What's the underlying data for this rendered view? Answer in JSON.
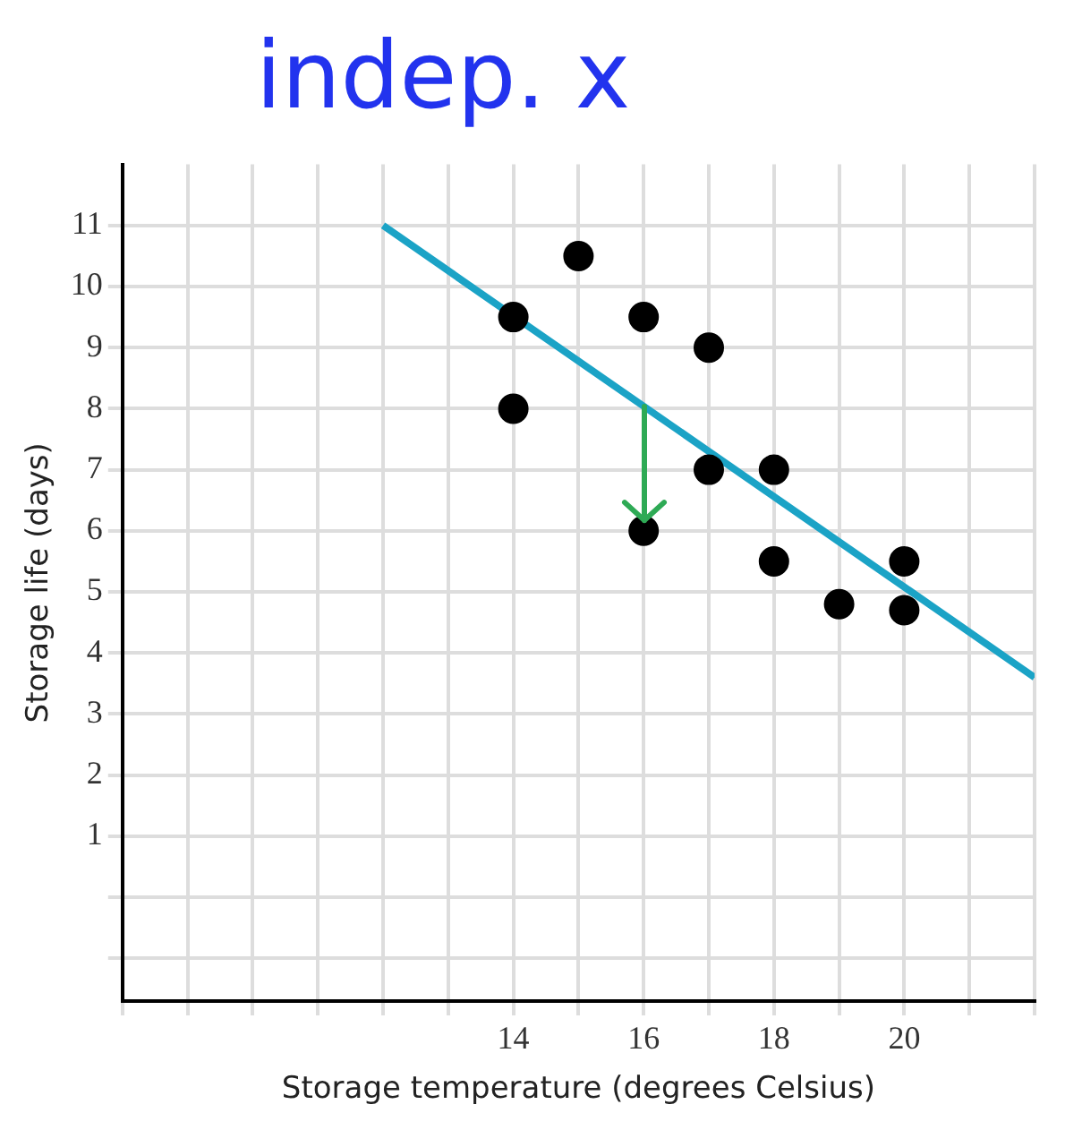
{
  "chart_data": {
    "type": "scatter",
    "xlabel": "Storage temperature (degrees Celsius)",
    "ylabel": "Storage life (days)",
    "annotations": [
      "indep. x"
    ],
    "xlim": [
      8,
      22
    ],
    "ylim": [
      -1.7,
      12
    ],
    "xticks": [
      {
        "value": 8,
        "label": null
      },
      {
        "value": 9,
        "label": null
      },
      {
        "value": 10,
        "label": null
      },
      {
        "value": 11,
        "label": null
      },
      {
        "value": 12,
        "label": null
      },
      {
        "value": 13,
        "label": null
      },
      14,
      {
        "value": 15,
        "label": null
      },
      16,
      {
        "value": 17,
        "label": null
      },
      18,
      {
        "value": 19,
        "label": null
      },
      20,
      {
        "value": 21,
        "label": null
      },
      {
        "value": 22,
        "label": null
      }
    ],
    "yticks": [
      {
        "value": -1,
        "label": null
      },
      {
        "value": 0,
        "label": null
      },
      1,
      2,
      3,
      4,
      5,
      6,
      7,
      8,
      9,
      10,
      11
    ],
    "grid": true,
    "legend": false,
    "series": [
      {
        "marker": "circle",
        "color": "#000000",
        "x": [
          14,
          14,
          15,
          16,
          16,
          17,
          17,
          18,
          18,
          19,
          20,
          20
        ],
        "values": [
          9.5,
          8,
          10.5,
          9.5,
          6,
          9,
          7,
          7,
          5.5,
          4.8,
          5.5,
          4.7
        ]
      },
      {
        "type": "line",
        "color": "#1ba3c6",
        "x": [
          12,
          22
        ],
        "values": [
          11,
          3.6
        ]
      }
    ]
  }
}
